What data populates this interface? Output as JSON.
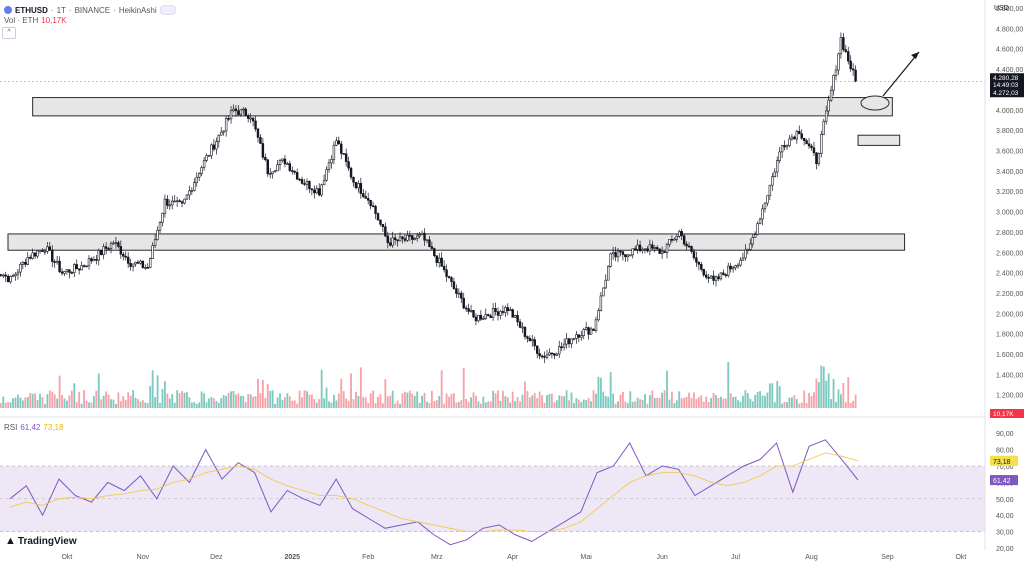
{
  "header": {
    "symbol": "ETHUSD",
    "interval": "1T",
    "exchange": "BINANCE",
    "chart_style": "HeikinAshi",
    "separator": "·"
  },
  "volume_legend": {
    "label": "Vol · ETH",
    "value": "10,17K"
  },
  "rsi_legend": {
    "label": "RSI",
    "value1": "61,42",
    "value2": "73,18"
  },
  "price_scale": {
    "currency": "USD",
    "last_price": "4.280,28",
    "countdown": "14:49:03",
    "line_price": "4.272,03",
    "volume_value": "10,17K"
  },
  "rsi_scale": {
    "value_ma": "73,18",
    "value_rsi": "61,42"
  },
  "brand": {
    "name": "TradingView"
  },
  "colors": {
    "up": "#089981",
    "down": "#f23645",
    "candle": "#131722",
    "vol_up": "#7ec9bf",
    "vol_down": "#f5a3a9",
    "rsi": "#7e57c2",
    "rsi_ma": "#f4c542",
    "rsi_band": "#ede7f6"
  },
  "chart_data": [
    {
      "type": "candlestick",
      "title": "ETHUSD · 1T · BINANCE · HeikinAshi",
      "ylabel": "USD",
      "ylim": [
        1050,
        5000
      ],
      "y_ticks": [
        "5.000,00",
        "4.800,00",
        "4.600,00",
        "4.400,00",
        "4.200,00",
        "4.000,00",
        "3.800,00",
        "3.600,00",
        "3.400,00",
        "3.200,00",
        "3.000,00",
        "2.800,00",
        "2.600,00",
        "2.400,00",
        "2.200,00",
        "2.000,00",
        "1.800,00",
        "1.600,00",
        "1.400,00",
        "1.200,00"
      ],
      "x_ticks": [
        "Okt",
        "Nov",
        "Dez",
        "2025",
        "Feb",
        "Mrz",
        "Apr",
        "Mai",
        "Jun",
        "Jul",
        "Aug",
        "Sep",
        "Okt"
      ],
      "grid": false,
      "annotations": [
        {
          "type": "zone",
          "price_range": [
            3940,
            4120
          ],
          "from": "2024-09-17",
          "to": "2025-09-03"
        },
        {
          "type": "zone",
          "price_range": [
            2620,
            2780
          ],
          "from": "2024-09-01",
          "to": "2025-09-08"
        },
        {
          "type": "zone",
          "price_range": [
            3650,
            3750
          ],
          "from": "2025-08-20",
          "to": "2025-09-06"
        },
        {
          "type": "ellipse",
          "price": 4180,
          "date": "2025-08-20"
        },
        {
          "type": "arrow",
          "from_price": 4200,
          "to_price": 4700,
          "from": "2025-08-22",
          "to": "2025-09-01"
        }
      ],
      "price_line": 4280.28,
      "series": [
        {
          "x": "2024-09-01",
          "y": 2450
        },
        {
          "x": "2024-09-08",
          "y": 2330
        },
        {
          "x": "2024-09-15",
          "y": 2550
        },
        {
          "x": "2024-09-22",
          "y": 2650
        },
        {
          "x": "2024-09-29",
          "y": 2400
        },
        {
          "x": "2024-10-06",
          "y": 2450
        },
        {
          "x": "2024-10-13",
          "y": 2560
        },
        {
          "x": "2024-10-20",
          "y": 2700
        },
        {
          "x": "2024-10-27",
          "y": 2500
        },
        {
          "x": "2024-11-03",
          "y": 2450
        },
        {
          "x": "2024-11-10",
          "y": 3100
        },
        {
          "x": "2024-11-17",
          "y": 3050
        },
        {
          "x": "2024-11-24",
          "y": 3400
        },
        {
          "x": "2024-12-01",
          "y": 3700
        },
        {
          "x": "2024-12-08",
          "y": 4000
        },
        {
          "x": "2024-12-15",
          "y": 3950
        },
        {
          "x": "2024-12-22",
          "y": 3400
        },
        {
          "x": "2024-12-29",
          "y": 3500
        },
        {
          "x": "2025-01-05",
          "y": 3300
        },
        {
          "x": "2025-01-12",
          "y": 3200
        },
        {
          "x": "2025-01-19",
          "y": 3700
        },
        {
          "x": "2025-01-26",
          "y": 3300
        },
        {
          "x": "2025-02-02",
          "y": 3100
        },
        {
          "x": "2025-02-09",
          "y": 2700
        },
        {
          "x": "2025-02-16",
          "y": 2720
        },
        {
          "x": "2025-02-23",
          "y": 2750
        },
        {
          "x": "2025-03-02",
          "y": 2500
        },
        {
          "x": "2025-03-09",
          "y": 2200
        },
        {
          "x": "2025-03-16",
          "y": 1950
        },
        {
          "x": "2025-03-23",
          "y": 2000
        },
        {
          "x": "2025-03-30",
          "y": 2050
        },
        {
          "x": "2025-04-06",
          "y": 1800
        },
        {
          "x": "2025-04-13",
          "y": 1580
        },
        {
          "x": "2025-04-20",
          "y": 1650
        },
        {
          "x": "2025-04-27",
          "y": 1800
        },
        {
          "x": "2025-05-04",
          "y": 1850
        },
        {
          "x": "2025-05-11",
          "y": 2550
        },
        {
          "x": "2025-05-18",
          "y": 2600
        },
        {
          "x": "2025-05-25",
          "y": 2650
        },
        {
          "x": "2025-06-01",
          "y": 2600
        },
        {
          "x": "2025-06-08",
          "y": 2800
        },
        {
          "x": "2025-06-15",
          "y": 2500
        },
        {
          "x": "2025-06-22",
          "y": 2300
        },
        {
          "x": "2025-06-29",
          "y": 2450
        },
        {
          "x": "2025-07-06",
          "y": 2600
        },
        {
          "x": "2025-07-13",
          "y": 3100
        },
        {
          "x": "2025-07-20",
          "y": 3650
        },
        {
          "x": "2025-07-27",
          "y": 3800
        },
        {
          "x": "2025-08-03",
          "y": 3500
        },
        {
          "x": "2025-08-10",
          "y": 4300
        },
        {
          "x": "2025-08-13",
          "y": 4700
        },
        {
          "x": "2025-08-17",
          "y": 4420
        },
        {
          "x": "2025-08-19",
          "y": 4280
        }
      ]
    },
    {
      "type": "bar",
      "title": "Vol · ETH",
      "last_value": "10,17K"
    },
    {
      "type": "line",
      "title": "RSI",
      "ylim": [
        20,
        95
      ],
      "y_ticks": [
        "90,00",
        "80,00",
        "70,00",
        "60,00",
        "50,00",
        "40,00",
        "30,00",
        "20,00"
      ],
      "band": [
        30,
        70
      ],
      "series": [
        {
          "name": "RSI",
          "values": [
            50,
            58,
            40,
            62,
            52,
            48,
            60,
            55,
            64,
            50,
            70,
            60,
            80,
            62,
            72,
            66,
            42,
            55,
            50,
            46,
            62,
            44,
            38,
            32,
            34,
            36,
            28,
            22,
            25,
            32,
            34,
            28,
            24,
            30,
            36,
            42,
            66,
            70,
            84,
            64,
            70,
            68,
            52,
            58,
            64,
            70,
            74,
            84,
            54,
            82,
            86,
            74,
            61.42
          ]
        },
        {
          "name": "MA",
          "values": [
            45,
            48,
            46,
            50,
            51,
            50,
            52,
            53,
            55,
            56,
            60,
            62,
            66,
            68,
            70,
            68,
            62,
            58,
            55,
            52,
            52,
            50,
            46,
            42,
            38,
            36,
            34,
            32,
            30,
            30,
            31,
            31,
            30,
            30,
            32,
            36,
            44,
            52,
            60,
            64,
            66,
            66,
            64,
            60,
            58,
            60,
            64,
            70,
            70,
            74,
            78,
            76,
            73.18
          ]
        }
      ]
    }
  ]
}
